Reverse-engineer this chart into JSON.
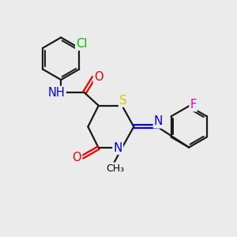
{
  "background_color": "#ebebeb",
  "atom_colors": {
    "C": "#000000",
    "N": "#0000ee",
    "O": "#ee0000",
    "S": "#cccc00",
    "Cl": "#00bb00",
    "F": "#cc00cc",
    "H": "#000000"
  },
  "bond_color": "#1a1a1a",
  "bond_width": 1.6,
  "font_size_atom": 10.5,
  "figsize": [
    3.0,
    3.0
  ],
  "dpi": 100
}
